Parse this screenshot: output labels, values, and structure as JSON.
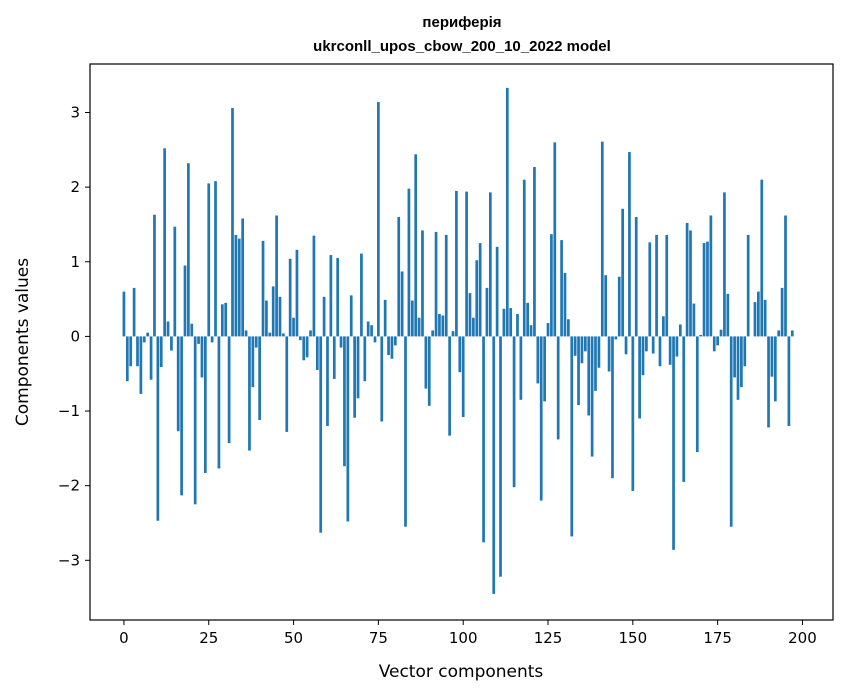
{
  "chart_data": {
    "type": "bar",
    "title_line1": "периферія",
    "title_line2": "ukrconll_upos_cbow_200_10_2022 model",
    "xlabel": "Vector components",
    "ylabel": "Components values",
    "xlim": [
      -10,
      209
    ],
    "ylim": [
      -3.8,
      3.65
    ],
    "x_ticks": [
      0,
      25,
      50,
      75,
      100,
      125,
      150,
      175,
      200
    ],
    "x_tick_labels": [
      "0",
      "25",
      "50",
      "75",
      "100",
      "125",
      "150",
      "175",
      "200"
    ],
    "y_ticks": [
      -3,
      -2,
      -1,
      0,
      1,
      2,
      3
    ],
    "y_tick_labels": [
      "−3",
      "−2",
      "−1",
      "0",
      "1",
      "2",
      "3"
    ],
    "bar_color": "#1f77b4",
    "grid": false,
    "values": [
      0.6,
      -0.6,
      -0.4,
      0.65,
      -0.4,
      -0.77,
      -0.08,
      0.05,
      -0.58,
      1.63,
      -2.47,
      -0.41,
      2.52,
      0.2,
      -0.19,
      1.47,
      -1.27,
      -2.13,
      0.95,
      2.32,
      0.17,
      -2.25,
      -0.1,
      -0.55,
      -1.83,
      2.05,
      -0.08,
      2.08,
      -1.77,
      0.43,
      0.45,
      -1.43,
      3.06,
      1.36,
      1.31,
      1.58,
      0.08,
      -1.53,
      -0.68,
      -0.15,
      -1.12,
      1.28,
      0.48,
      0.05,
      0.67,
      1.62,
      0.53,
      0.04,
      -1.28,
      1.04,
      0.25,
      1.16,
      -0.05,
      -0.32,
      -0.28,
      0.08,
      1.35,
      -0.45,
      -2.63,
      0.53,
      -1.2,
      1.09,
      -0.57,
      1.05,
      -0.15,
      -1.74,
      -2.48,
      0.55,
      -1.09,
      -0.83,
      1.11,
      -0.6,
      0.2,
      0.15,
      -0.08,
      3.14,
      -1.14,
      0.49,
      -0.25,
      -0.3,
      -0.12,
      1.6,
      0.87,
      -2.55,
      1.98,
      0.48,
      2.44,
      0.25,
      1.42,
      -0.7,
      -0.93,
      0.08,
      1.4,
      0.3,
      0.28,
      1.36,
      -1.33,
      0.07,
      1.95,
      -0.48,
      -1.08,
      1.94,
      0.58,
      0.25,
      1.02,
      1.25,
      -2.76,
      0.65,
      1.93,
      -3.45,
      1.2,
      -3.22,
      0.37,
      3.33,
      0.38,
      -2.02,
      0.3,
      -0.85,
      2.1,
      0.45,
      0.15,
      2.27,
      -0.63,
      -2.2,
      -0.87,
      0.18,
      1.37,
      2.6,
      -1.38,
      1.29,
      0.85,
      0.23,
      -2.68,
      -0.26,
      -0.92,
      -0.36,
      -0.2,
      -1.06,
      -1.61,
      -0.73,
      -0.42,
      2.61,
      0.82,
      -0.47,
      -1.9,
      -0.04,
      0.8,
      1.71,
      -0.24,
      2.47,
      -2.07,
      1.6,
      -1.1,
      -0.52,
      -0.2,
      1.26,
      -0.23,
      1.36,
      -0.4,
      0.27,
      1.36,
      -0.38,
      -2.86,
      -0.27,
      0.16,
      -1.95,
      1.52,
      1.42,
      0.44,
      -1.55,
      0.02,
      1.25,
      1.27,
      1.62,
      -0.2,
      -0.12,
      0.09,
      1.93,
      0.57,
      -2.55,
      -0.55,
      -0.85,
      -0.68,
      -0.4,
      1.36,
      0.0,
      0.46,
      0.6,
      2.1,
      0.49,
      -1.22,
      -0.54,
      -0.87,
      0.08,
      0.65,
      1.62,
      -1.2,
      0.08,
      0.0,
      0.0
    ]
  }
}
